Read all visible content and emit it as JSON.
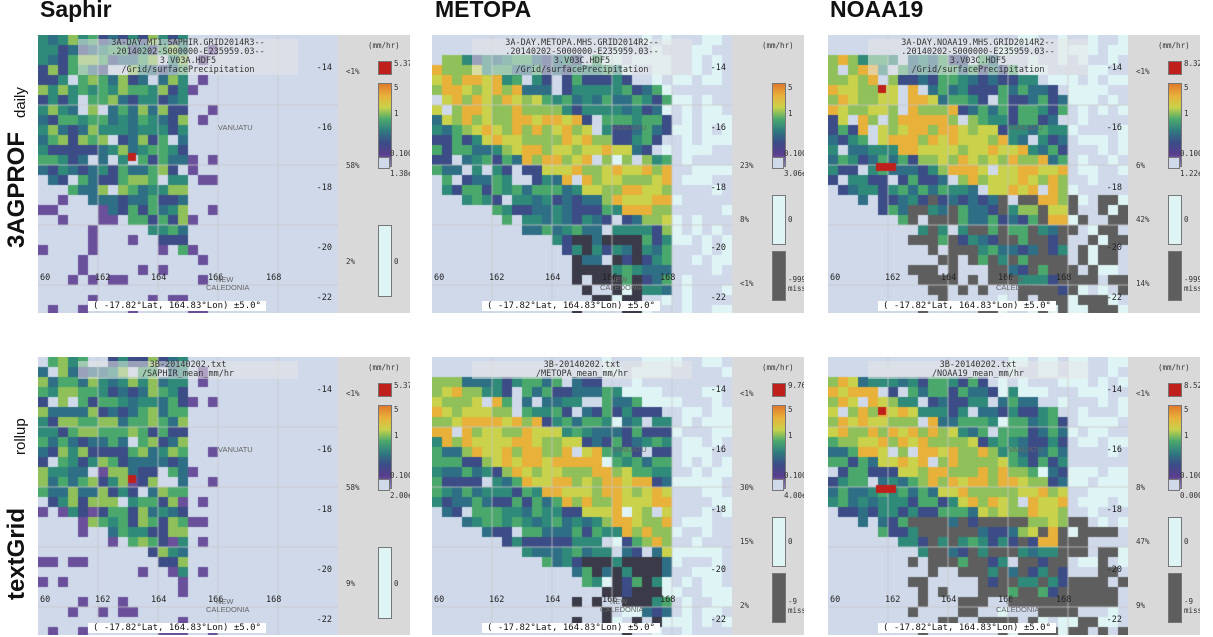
{
  "columns": [
    "Saphir",
    "METOPA",
    "NOAA19"
  ],
  "rows": [
    {
      "big": "3AGPROF",
      "small": "daily"
    },
    {
      "big": "textGrid",
      "small": "rollup"
    }
  ],
  "map_common": {
    "lat_ticks": [
      "-14",
      "-16",
      "-18",
      "-20",
      "-22"
    ],
    "lon_ticks": [
      "60",
      "162",
      "164",
      "166",
      "168"
    ],
    "places": [
      "VANUATU",
      "NEW",
      "CALEDONIA"
    ],
    "coords": "( -17.82°Lat, 164.83°Lon) ±5.0°",
    "unit": "(mm/hr)"
  },
  "panels": [
    {
      "id": "3agprof-saphir",
      "header": [
        "3A-DAY.MT1.SAPHIR.GRID2014R3--",
        ".20140202-S000000-E235959.03--",
        "3.V03A.HDF5",
        "/Grid/surfacePrecipitation"
      ],
      "legend": {
        "top_pct": "<1%",
        "max": "5.37898",
        "tick_high": "5",
        "tick_mid": "1",
        "tick_low": "0.10000",
        "low_pct": "58%",
        "low_val": "1.38e-06",
        "zero_pct": "2%",
        "zero_val": "0",
        "missing_pct": "",
        "missing_val": "",
        "missing_label": ""
      }
    },
    {
      "id": "3agprof-metopa",
      "header": [
        "3A-DAY.METOPA.MHS.GRID2014R2--",
        ".20140202-S000000-E235959.03--",
        "3.V03C.HDF5",
        "/Grid/surfacePrecipitation"
      ],
      "legend": {
        "top_pct": "",
        "max": "",
        "tick_high": "5",
        "tick_mid": "1",
        "tick_low": "0.10000",
        "low_pct": "23%",
        "low_val": "3.06e-10",
        "zero_pct": "8%",
        "zero_val": "0",
        "missing_pct": "<1%",
        "missing_val": "-9999.9",
        "missing_label": "missing"
      }
    },
    {
      "id": "3agprof-noaa19",
      "header": [
        "3A-DAY.NOAA19.MHS.GRID2014R2--",
        ".20140202-S000000-E235959.03--",
        "3.V03C.HDF5",
        "/Grid/surfacePrecipitation"
      ],
      "legend": {
        "top_pct": "<1%",
        "max": "8.32972",
        "tick_high": "5",
        "tick_mid": "1",
        "tick_low": "0.10000",
        "low_pct": "6%",
        "low_val": "1.22e-08",
        "zero_pct": "42%",
        "zero_val": "0",
        "missing_pct": "14%",
        "missing_val": "-9999.9",
        "missing_label": "missing"
      }
    },
    {
      "id": "textgrid-saphir",
      "header": [
        "3B-20140202.txt",
        "/SAPHIR_mean_mm/hr"
      ],
      "legend": {
        "top_pct": "<1%",
        "max": "5.37901",
        "tick_high": "5",
        "tick_mid": "1",
        "tick_low": "0.10000",
        "low_pct": "58%",
        "low_val": "2.00e-05",
        "zero_pct": "9%",
        "zero_val": "0",
        "missing_pct": "",
        "missing_val": "",
        "missing_label": ""
      }
    },
    {
      "id": "textgrid-metopa",
      "header": [
        "3B-20140202.txt",
        "/METOPA_mean_mm/hr"
      ],
      "legend": {
        "top_pct": "<1%",
        "max": "9.76332",
        "tick_high": "5",
        "tick_mid": "1",
        "tick_low": "0.10000",
        "low_pct": "30%",
        "low_val": "4.00e-05",
        "zero_pct": "15%",
        "zero_val": "0",
        "missing_pct": "2%",
        "missing_val": "-9",
        "missing_label": "missing"
      }
    },
    {
      "id": "textgrid-noaa19",
      "header": [
        "3B-20140202.txt",
        "/NOAA19_mean_mm/hr"
      ],
      "legend": {
        "top_pct": "<1%",
        "max": "8.52270",
        "tick_high": "5",
        "tick_mid": "1",
        "tick_low": "0.10000",
        "low_pct": "8%",
        "low_val": "0.00010",
        "zero_pct": "47%",
        "zero_val": "0",
        "missing_pct": "9%",
        "missing_val": "-9",
        "missing_label": "missing"
      }
    }
  ],
  "colors": {
    "no_data": "#cfd9ea",
    "zero": "#dff5f5",
    "missing": "#5e5e5e",
    "max": "#c0201b",
    "background": "#d9d9d9"
  }
}
